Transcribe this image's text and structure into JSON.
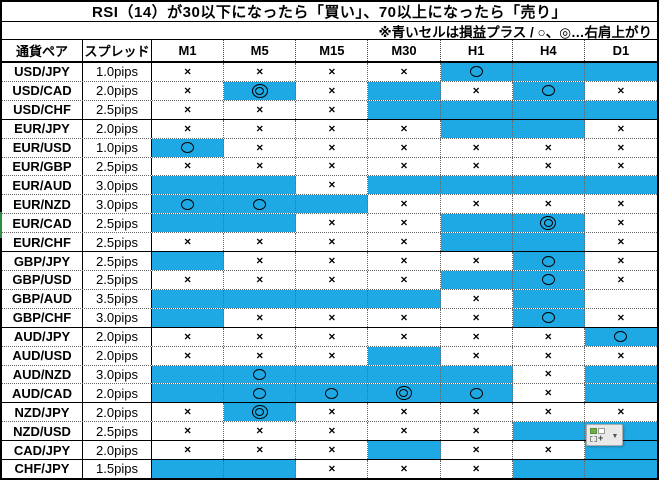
{
  "title": "RSI（14）が30以下になったら「買い」、70以上になったら「売り」",
  "subtitle": "※青いセルは損益プラス / ○、◎…右肩上がり",
  "symbols": {
    "x": "×",
    "o": "○",
    "oo": "◎"
  },
  "colors": {
    "profit_cell_blue": "#1FA9E4",
    "grid_line": "#000000",
    "autofill_green": "#70AD47",
    "left_edge_artifact_green": "#2F8C46"
  },
  "autofill_button": {
    "tooltip_glyphs": [
      "green-square",
      "outline-square",
      "dashed-square-plus"
    ],
    "dropdown_arrow": "▼"
  },
  "table": {
    "headers": [
      "通貨ペア",
      "スプレッド",
      "M1",
      "M5",
      "M15",
      "M30",
      "H1",
      "H4",
      "D1"
    ],
    "cell_code_legend": "symbol(x=×, o=○, oo=◎, -=none) + background(b=blue, w=white)",
    "rows": [
      {
        "pair": "USD/JPY",
        "spread": "1.0pips",
        "cells": [
          "xw",
          "xw",
          "xw",
          "xw",
          "ob",
          "-b",
          "-b"
        ],
        "group_end": false
      },
      {
        "pair": "USD/CAD",
        "spread": "2.0pips",
        "cells": [
          "xw",
          "oob",
          "xw",
          "-b",
          "xw",
          "ob",
          "xw"
        ],
        "group_end": false
      },
      {
        "pair": "USD/CHF",
        "spread": "2.5pips",
        "cells": [
          "xw",
          "xw",
          "xw",
          "-b",
          "-b",
          "-b",
          "-b"
        ],
        "group_end": true
      },
      {
        "pair": "EUR/JPY",
        "spread": "2.0pips",
        "cells": [
          "xw",
          "xw",
          "xw",
          "xw",
          "-b",
          "-b",
          "xw"
        ],
        "group_end": false
      },
      {
        "pair": "EUR/USD",
        "spread": "1.0pips",
        "cells": [
          "ob",
          "xw",
          "xw",
          "xw",
          "xw",
          "xw",
          "xw"
        ],
        "group_end": false
      },
      {
        "pair": "EUR/GBP",
        "spread": "2.5pips",
        "cells": [
          "xw",
          "xw",
          "xw",
          "xw",
          "xw",
          "xw",
          "xw"
        ],
        "group_end": false
      },
      {
        "pair": "EUR/AUD",
        "spread": "3.0pips",
        "cells": [
          "-b",
          "-b",
          "xw",
          "-b",
          "-b",
          "-b",
          "-b"
        ],
        "group_end": false
      },
      {
        "pair": "EUR/NZD",
        "spread": "3.0pips",
        "cells": [
          "ob",
          "ob",
          "-b",
          "xw",
          "xw",
          "xw",
          "xw"
        ],
        "group_end": false
      },
      {
        "pair": "EUR/CAD",
        "spread": "2.5pips",
        "cells": [
          "-b",
          "-b",
          "xw",
          "xw",
          "-b",
          "oob",
          "xw"
        ],
        "group_end": false
      },
      {
        "pair": "EUR/CHF",
        "spread": "2.5pips",
        "cells": [
          "xw",
          "xw",
          "xw",
          "xw",
          "-b",
          "-b",
          "xw"
        ],
        "group_end": true
      },
      {
        "pair": "GBP/JPY",
        "spread": "2.5pips",
        "cells": [
          "-b",
          "xw",
          "xw",
          "xw",
          "xw",
          "ob",
          "xw"
        ],
        "group_end": false
      },
      {
        "pair": "GBP/USD",
        "spread": "2.5pips",
        "cells": [
          "xw",
          "xw",
          "xw",
          "xw",
          "-b",
          "ob",
          "xw"
        ],
        "group_end": false
      },
      {
        "pair": "GBP/AUD",
        "spread": "3.5pips",
        "cells": [
          "-b",
          "-b",
          "-b",
          "-b",
          "xw",
          "-b",
          "-w"
        ],
        "group_end": false
      },
      {
        "pair": "GBP/CHF",
        "spread": "3.0pips",
        "cells": [
          "-b",
          "xw",
          "xw",
          "xw",
          "xw",
          "ob",
          "xw"
        ],
        "group_end": true
      },
      {
        "pair": "AUD/JPY",
        "spread": "2.0pips",
        "cells": [
          "xw",
          "xw",
          "xw",
          "xw",
          "xw",
          "xw",
          "ob"
        ],
        "group_end": false
      },
      {
        "pair": "AUD/USD",
        "spread": "2.0pips",
        "cells": [
          "xw",
          "xw",
          "xw",
          "-b",
          "xw",
          "xw",
          "xw"
        ],
        "group_end": false
      },
      {
        "pair": "AUD/NZD",
        "spread": "3.0pips",
        "cells": [
          "-b",
          "ob",
          "-b",
          "-b",
          "-b",
          "xw",
          "-b"
        ],
        "group_end": false
      },
      {
        "pair": "AUD/CAD",
        "spread": "2.0pips",
        "cells": [
          "-b",
          "ob",
          "ob",
          "oob",
          "ob",
          "xw",
          "-b"
        ],
        "group_end": true
      },
      {
        "pair": "NZD/JPY",
        "spread": "2.0pips",
        "cells": [
          "xw",
          "oob",
          "xw",
          "xw",
          "xw",
          "xw",
          "xw"
        ],
        "group_end": false
      },
      {
        "pair": "NZD/USD",
        "spread": "2.5pips",
        "cells": [
          "xw",
          "xw",
          "xw",
          "xw",
          "xw",
          "-b",
          "-b"
        ],
        "group_end": true
      },
      {
        "pair": "CAD/JPY",
        "spread": "2.0pips",
        "cells": [
          "xw",
          "xw",
          "xw",
          "-b",
          "xw",
          "xw",
          "-b"
        ],
        "group_end": true
      },
      {
        "pair": "CHF/JPY",
        "spread": "1.5pips",
        "cells": [
          "-b",
          "-b",
          "xw",
          "xw",
          "xw",
          "-b",
          "-b"
        ],
        "group_end": false
      }
    ]
  }
}
